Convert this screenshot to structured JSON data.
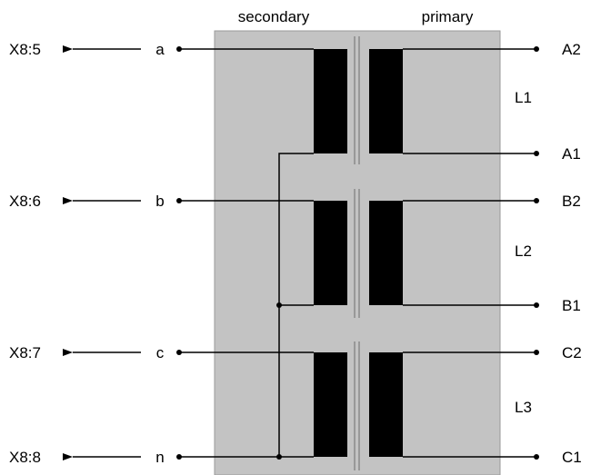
{
  "header": {
    "secondary_label": "secondary",
    "primary_label": "primary"
  },
  "left_terminals": [
    {
      "id": "X8:5",
      "node": "a"
    },
    {
      "id": "X8:6",
      "node": "b"
    },
    {
      "id": "X8:7",
      "node": "c"
    },
    {
      "id": "X8:8",
      "node": "n"
    }
  ],
  "right_terminals": [
    "A2",
    "A1",
    "B2",
    "B1",
    "C2",
    "C1"
  ],
  "phases": [
    "L1",
    "L2",
    "L3"
  ],
  "colors": {
    "tank": "#c3c3c3",
    "tank_border": "#9a9a9a",
    "winding": "#000000",
    "wire": "#000000",
    "core": "#8a8a8a"
  }
}
